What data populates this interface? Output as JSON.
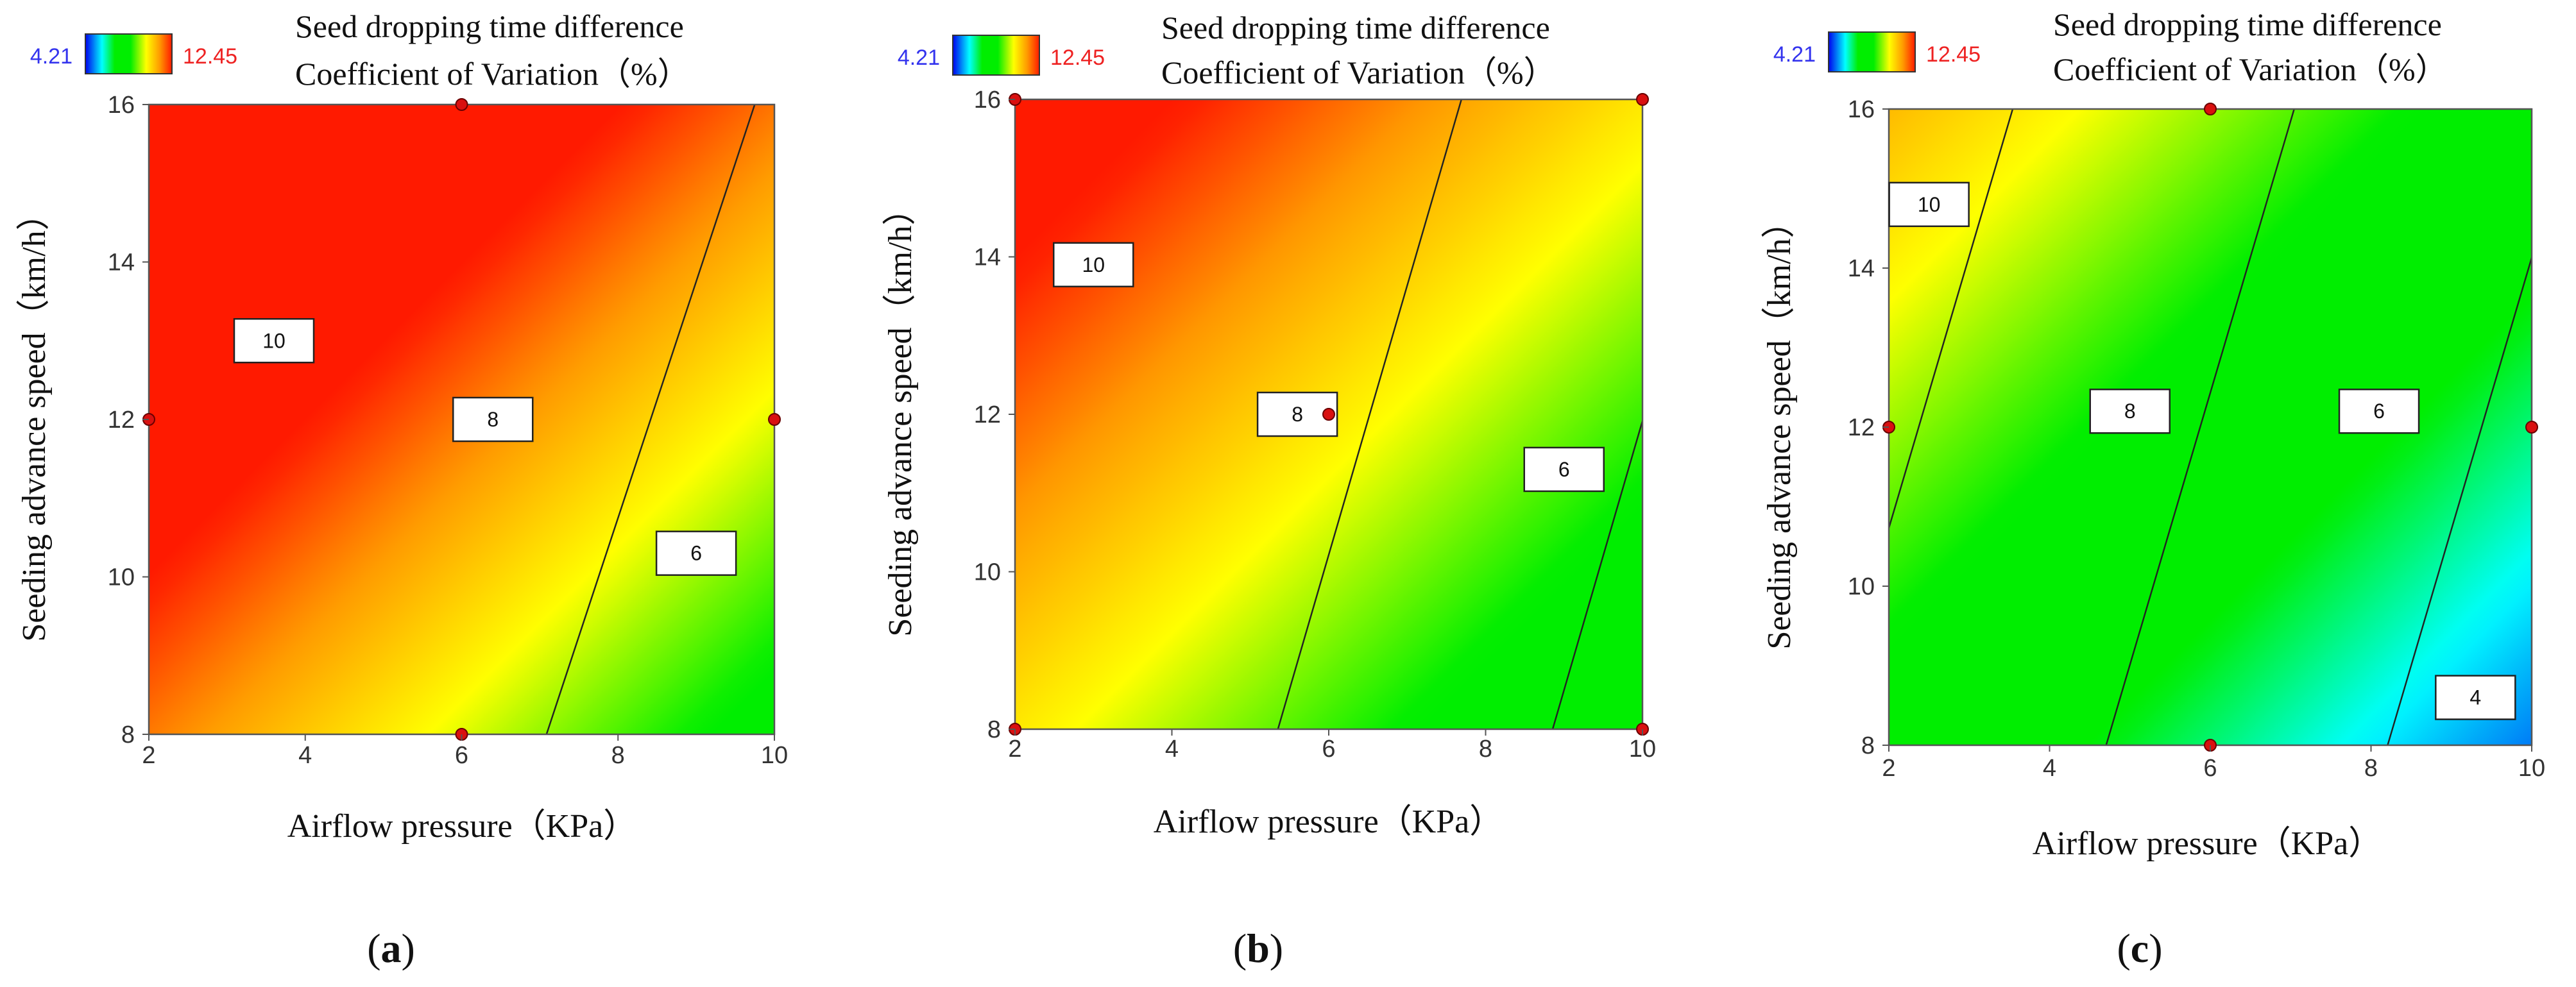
{
  "colorbar": {
    "min_label": "4.21",
    "max_label": "12.45",
    "min_color": "#3333ee",
    "max_color": "#ee2222"
  },
  "colormap": [
    [
      4.21,
      "#0000ee"
    ],
    [
      5.8,
      "#00ffff"
    ],
    [
      7.0,
      "#00ee00"
    ],
    [
      8.5,
      "#00ee00"
    ],
    [
      10.0,
      "#ffff00"
    ],
    [
      11.3,
      "#ff9900"
    ],
    [
      12.45,
      "#ff1a00"
    ]
  ],
  "chart_data": [
    {
      "type": "contour",
      "panel_label": "(a)",
      "panel_letter": "a",
      "title_line1": "Seed dropping time difference",
      "title_line2": "Coefficient of Variation（%）",
      "xlabel": "Airflow pressure（KPa）",
      "ylabel": "Seeding advance speed（km/h）",
      "xlim": [
        2,
        10
      ],
      "ylim": [
        8,
        16
      ],
      "xticks": [
        "2",
        "4",
        "6",
        "8",
        "10"
      ],
      "yticks": [
        "8",
        "10",
        "12",
        "14",
        "16"
      ],
      "model": {
        "c0": 12.95,
        "cx": -0.667,
        "cy": 0.222
      },
      "contour_levels": [
        "10",
        "8",
        "6"
      ],
      "contour_labels": [
        {
          "text": "10",
          "x": 3.6,
          "y": 13.0
        },
        {
          "text": "8",
          "x": 6.4,
          "y": 12.0
        },
        {
          "text": "6",
          "x": 9.0,
          "y": 10.3
        }
      ],
      "design_points": [
        [
          2,
          12
        ],
        [
          6,
          16
        ],
        [
          6,
          8
        ],
        [
          10,
          12
        ]
      ]
    },
    {
      "type": "contour",
      "panel_label": "(b)",
      "panel_letter": "b",
      "title_line1": "Seed dropping time difference",
      "title_line2": "Coefficient of Variation（%）",
      "xlabel": "Airflow pressure（KPa）",
      "ylabel": "Seeding advance speed（km/h）",
      "xlim": [
        2,
        10
      ],
      "ylim": [
        8,
        16
      ],
      "xticks": [
        "2",
        "4",
        "6",
        "8",
        "10"
      ],
      "yticks": [
        "8",
        "10",
        "12",
        "14",
        "16"
      ],
      "model": {
        "c0": 11.72,
        "cx": -0.571,
        "cy": 0.167
      },
      "contour_levels": [
        "10",
        "8",
        "6"
      ],
      "contour_labels": [
        {
          "text": "10",
          "x": 3.0,
          "y": 13.9
        },
        {
          "text": "8",
          "x": 5.6,
          "y": 12.0
        },
        {
          "text": "6",
          "x": 9.0,
          "y": 11.3
        }
      ],
      "design_points": [
        [
          2,
          16
        ],
        [
          10,
          16
        ],
        [
          6,
          12
        ],
        [
          2,
          8
        ],
        [
          10,
          8
        ]
      ]
    },
    {
      "type": "contour",
      "panel_label": "(c)",
      "panel_letter": "c",
      "title_line1": "Seed dropping time difference",
      "title_line2": "Coefficient of Variation（%）",
      "xlabel": "Airflow pressure（KPa）",
      "ylabel": "Seeding advance speed（km/h）",
      "xlim": [
        2,
        10
      ],
      "ylim": [
        8,
        16
      ],
      "xticks": [
        "2",
        "4",
        "6",
        "8",
        "10"
      ],
      "yticks": [
        "8",
        "10",
        "12",
        "14",
        "16"
      ],
      "model": {
        "c0": 9.35,
        "cx": -0.571,
        "cy": 0.167
      },
      "contour_levels": [
        "10",
        "8",
        "6",
        "4"
      ],
      "contour_labels": [
        {
          "text": "10",
          "x": 2.5,
          "y": 14.8
        },
        {
          "text": "8",
          "x": 5.0,
          "y": 12.2
        },
        {
          "text": "6",
          "x": 8.1,
          "y": 12.2
        },
        {
          "text": "4",
          "x": 9.3,
          "y": 8.6
        }
      ],
      "design_points": [
        [
          6,
          16
        ],
        [
          2,
          12
        ],
        [
          10,
          12
        ],
        [
          6,
          8
        ]
      ]
    }
  ]
}
